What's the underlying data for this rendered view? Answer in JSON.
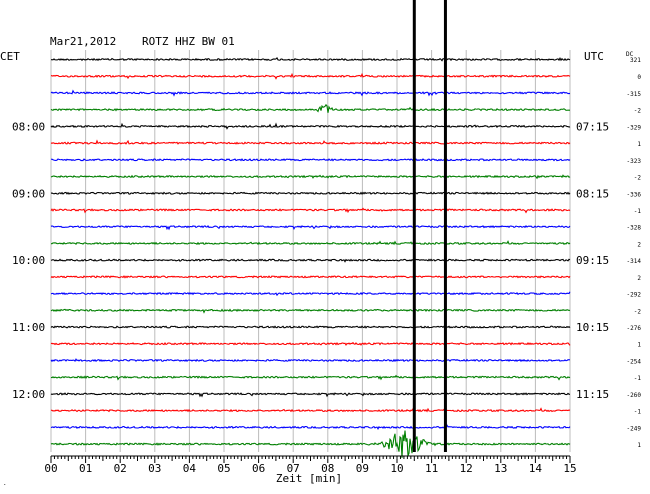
{
  "header": {
    "date": "Mar21,2012",
    "station": "ROTZ HHZ BW 01",
    "cet": "CET",
    "utc": "UTC",
    "dc_label": "DC",
    "dc_first": "321"
  },
  "chart_data": {
    "type": "line",
    "title": "Mar21,2012  ROTZ HHZ BW 01",
    "xlabel": "Zeit [min]",
    "x_ticks": [
      "00",
      "01",
      "02",
      "03",
      "04",
      "05",
      "06",
      "07",
      "08",
      "09",
      "10",
      "11",
      "12",
      "13",
      "14",
      "15"
    ],
    "xlim": [
      0,
      15
    ],
    "left_hour_labels": [
      {
        "row": 4,
        "label": "08:00"
      },
      {
        "row": 8,
        "label": "09:00"
      },
      {
        "row": 12,
        "label": "10:00"
      },
      {
        "row": 16,
        "label": "11:00"
      },
      {
        "row": 20,
        "label": "12:00"
      }
    ],
    "right_hour_labels": [
      {
        "row": 4,
        "label": "07:15"
      },
      {
        "row": 8,
        "label": "08:15"
      },
      {
        "row": 12,
        "label": "09:15"
      },
      {
        "row": 16,
        "label": "10:15"
      },
      {
        "row": 20,
        "label": "11:15"
      }
    ],
    "dc_offsets": [
      "0",
      "-315",
      "-2",
      "-329",
      "1",
      "-323",
      "-2",
      "-336",
      "-1",
      "-328",
      "2",
      "-314",
      "2",
      "-292",
      "-2",
      "-276",
      "1",
      "-254",
      "-1",
      "-260",
      "-1",
      "-249",
      "1"
    ],
    "trace_colors": [
      "#000000",
      "#ff0000",
      "#0000ff",
      "#007f00"
    ],
    "trace_count": 24,
    "event_markers_min": [
      10.5,
      11.4
    ],
    "events": [
      {
        "row": 3,
        "minute": 7.9,
        "amplitude": 5,
        "width": 0.6
      },
      {
        "row": 23,
        "minute": 10.2,
        "amplitude": 14,
        "width": 1.6
      }
    ],
    "grid": true
  },
  "footer": {
    "corner_mark": "."
  }
}
